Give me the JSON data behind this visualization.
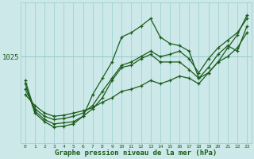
{
  "xlabel": "Graphe pression niveau de la mer (hPa)",
  "background_color": "#cce8e8",
  "grid_color": "#99cccc",
  "line_color": "#1a5c1a",
  "x_ticks": [
    0,
    1,
    2,
    3,
    4,
    5,
    6,
    7,
    8,
    9,
    10,
    11,
    12,
    13,
    14,
    15,
    16,
    17,
    18,
    19,
    20,
    21,
    22,
    23
  ],
  "y_label_val": 1025,
  "ylim": [
    1017.0,
    1030.0
  ],
  "series": [
    [
      1021.5,
      1020.5,
      1019.8,
      1019.5,
      1019.6,
      1019.8,
      1020.0,
      1020.3,
      1020.8,
      1021.2,
      1021.8,
      1022.0,
      1022.3,
      1022.8,
      1022.5,
      1022.8,
      1023.2,
      1023.0,
      1022.5,
      1023.5,
      1024.5,
      1025.0,
      1025.8,
      1027.2
    ],
    [
      1022.0,
      1020.2,
      1019.5,
      1019.2,
      1019.3,
      1019.5,
      1019.8,
      1020.5,
      1021.8,
      1023.0,
      1024.2,
      1024.5,
      1025.0,
      1025.5,
      1025.0,
      1025.2,
      1025.5,
      1024.8,
      1023.5,
      1024.8,
      1025.8,
      1026.5,
      1027.2,
      1028.5
    ],
    [
      1022.5,
      1019.8,
      1019.0,
      1018.5,
      1018.6,
      1018.8,
      1019.5,
      1021.5,
      1023.0,
      1024.5,
      1026.8,
      1027.2,
      1027.8,
      1028.5,
      1026.8,
      1026.2,
      1026.0,
      1025.5,
      1023.0,
      1023.5,
      1024.5,
      1025.8,
      1027.0,
      1028.8
    ],
    [
      1022.8,
      1020.0,
      1019.2,
      1018.8,
      1018.9,
      1019.0,
      1019.5,
      1020.2,
      1021.2,
      1022.8,
      1024.0,
      1024.2,
      1024.8,
      1025.2,
      1024.5,
      1024.5,
      1024.5,
      1023.8,
      1023.0,
      1024.0,
      1025.2,
      1026.0,
      1025.5,
      1027.8
    ]
  ]
}
